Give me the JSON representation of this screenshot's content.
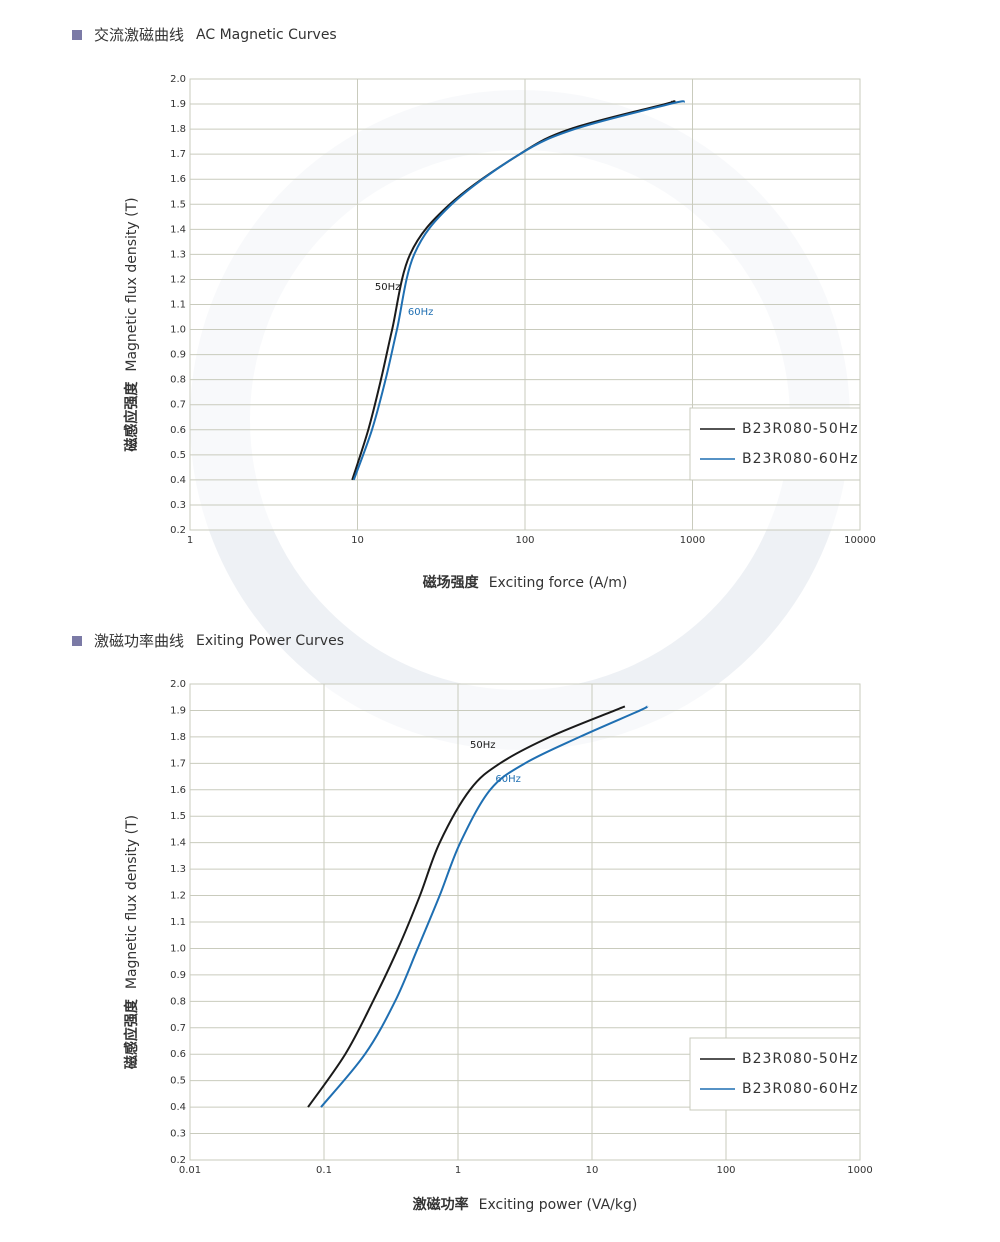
{
  "chart_data": [
    {
      "type": "line",
      "title_cn": "交流激磁曲线",
      "title_en": "AC Magnetic Curves",
      "x_label_cn": "磁场强度",
      "x_label_en": "Exciting force (A/m)",
      "y_label_cn": "磁感应强度",
      "y_label_en": "Magnetic flux density (T)",
      "x_scale": "log",
      "grid": true,
      "legend": "lower right",
      "xlim": [
        1,
        10000
      ],
      "xticks": [
        1,
        10,
        100,
        1000,
        10000
      ],
      "ylim": [
        0.2,
        2.0
      ],
      "yticks": [
        {
          "value": 0.2,
          "label": "0.2"
        },
        0.3,
        0.4,
        0.5,
        0.6,
        0.7,
        0.8,
        0.9,
        {
          "value": 1.0,
          "label": "1.0"
        },
        1.1,
        1.2,
        1.3,
        1.4,
        1.5,
        1.6,
        1.7,
        1.8,
        1.9,
        {
          "value": 2.0,
          "label": "2.0"
        }
      ],
      "series": [
        {
          "name": "B23R080-50Hz",
          "color": "#1a1a1a",
          "x": [
            9.3,
            11.6,
            13.8,
            16.1,
            20.6,
            35.6,
            93,
            186,
            686,
            755
          ],
          "values": [
            0.4,
            0.6,
            0.8,
            1.0,
            1.3,
            1.5,
            1.7,
            1.8,
            1.9,
            1.91
          ]
        },
        {
          "name": "B23R080-60Hz",
          "color": "#1f6fb2",
          "x": [
            9.5,
            12.2,
            14.7,
            17.2,
            21.8,
            36.5,
            93,
            198,
            730,
            900
          ],
          "values": [
            0.4,
            0.6,
            0.8,
            1.0,
            1.3,
            1.5,
            1.7,
            1.8,
            1.9,
            1.91
          ]
        }
      ],
      "annotations": [
        {
          "text": "50Hz",
          "x": 12.7,
          "y": 1.17,
          "color": "#1a1a1a"
        },
        {
          "text": "60Hz",
          "x": 20,
          "y": 1.07,
          "color": "#1f6fb2"
        }
      ]
    },
    {
      "type": "line",
      "title_cn": "激磁功率曲线",
      "title_en": "Exiting Power Curves",
      "x_label_cn": "激磁功率",
      "x_label_en": "Exciting  power (VA/kg)",
      "y_label_cn": "磁感应强度",
      "y_label_en": "Magnetic flux density (T)",
      "x_scale": "log",
      "grid": true,
      "legend": "lower right",
      "xlim": [
        0.01,
        1000
      ],
      "xticks": [
        0.01,
        0.1,
        1,
        10,
        100,
        1000
      ],
      "ylim": [
        0.2,
        2.0
      ],
      "yticks": [
        {
          "value": 0.2,
          "label": "0.2"
        },
        0.3,
        0.4,
        0.5,
        0.6,
        0.7,
        0.8,
        0.9,
        {
          "value": 1.0,
          "label": "1.0"
        },
        1.1,
        1.2,
        1.3,
        1.4,
        1.5,
        1.6,
        1.7,
        1.8,
        1.9,
        {
          "value": 2.0,
          "label": "2.0"
        }
      ],
      "series": [
        {
          "name": "B23R080-50Hz",
          "color": "#1a1a1a",
          "x": [
            0.076,
            0.144,
            0.232,
            0.357,
            0.52,
            0.73,
            1.23,
            2.06,
            4.86,
            14.8,
            17.6
          ],
          "values": [
            0.4,
            0.6,
            0.8,
            1.0,
            1.2,
            1.4,
            1.6,
            1.7,
            1.8,
            1.9,
            1.915
          ]
        },
        {
          "name": "B23R080-60Hz",
          "color": "#1f6fb2",
          "x": [
            0.095,
            0.202,
            0.339,
            0.5,
            0.73,
            1.04,
            1.74,
            3.16,
            8.1,
            22.8,
            25.7
          ],
          "values": [
            0.4,
            0.6,
            0.8,
            1.0,
            1.2,
            1.4,
            1.6,
            1.7,
            1.8,
            1.9,
            1.915
          ]
        }
      ],
      "annotations": [
        {
          "text": "50Hz",
          "x": 1.23,
          "y": 1.77,
          "color": "#1a1a1a"
        },
        {
          "text": "60Hz",
          "x": 1.9,
          "y": 1.64,
          "color": "#1f6fb2"
        }
      ]
    }
  ]
}
